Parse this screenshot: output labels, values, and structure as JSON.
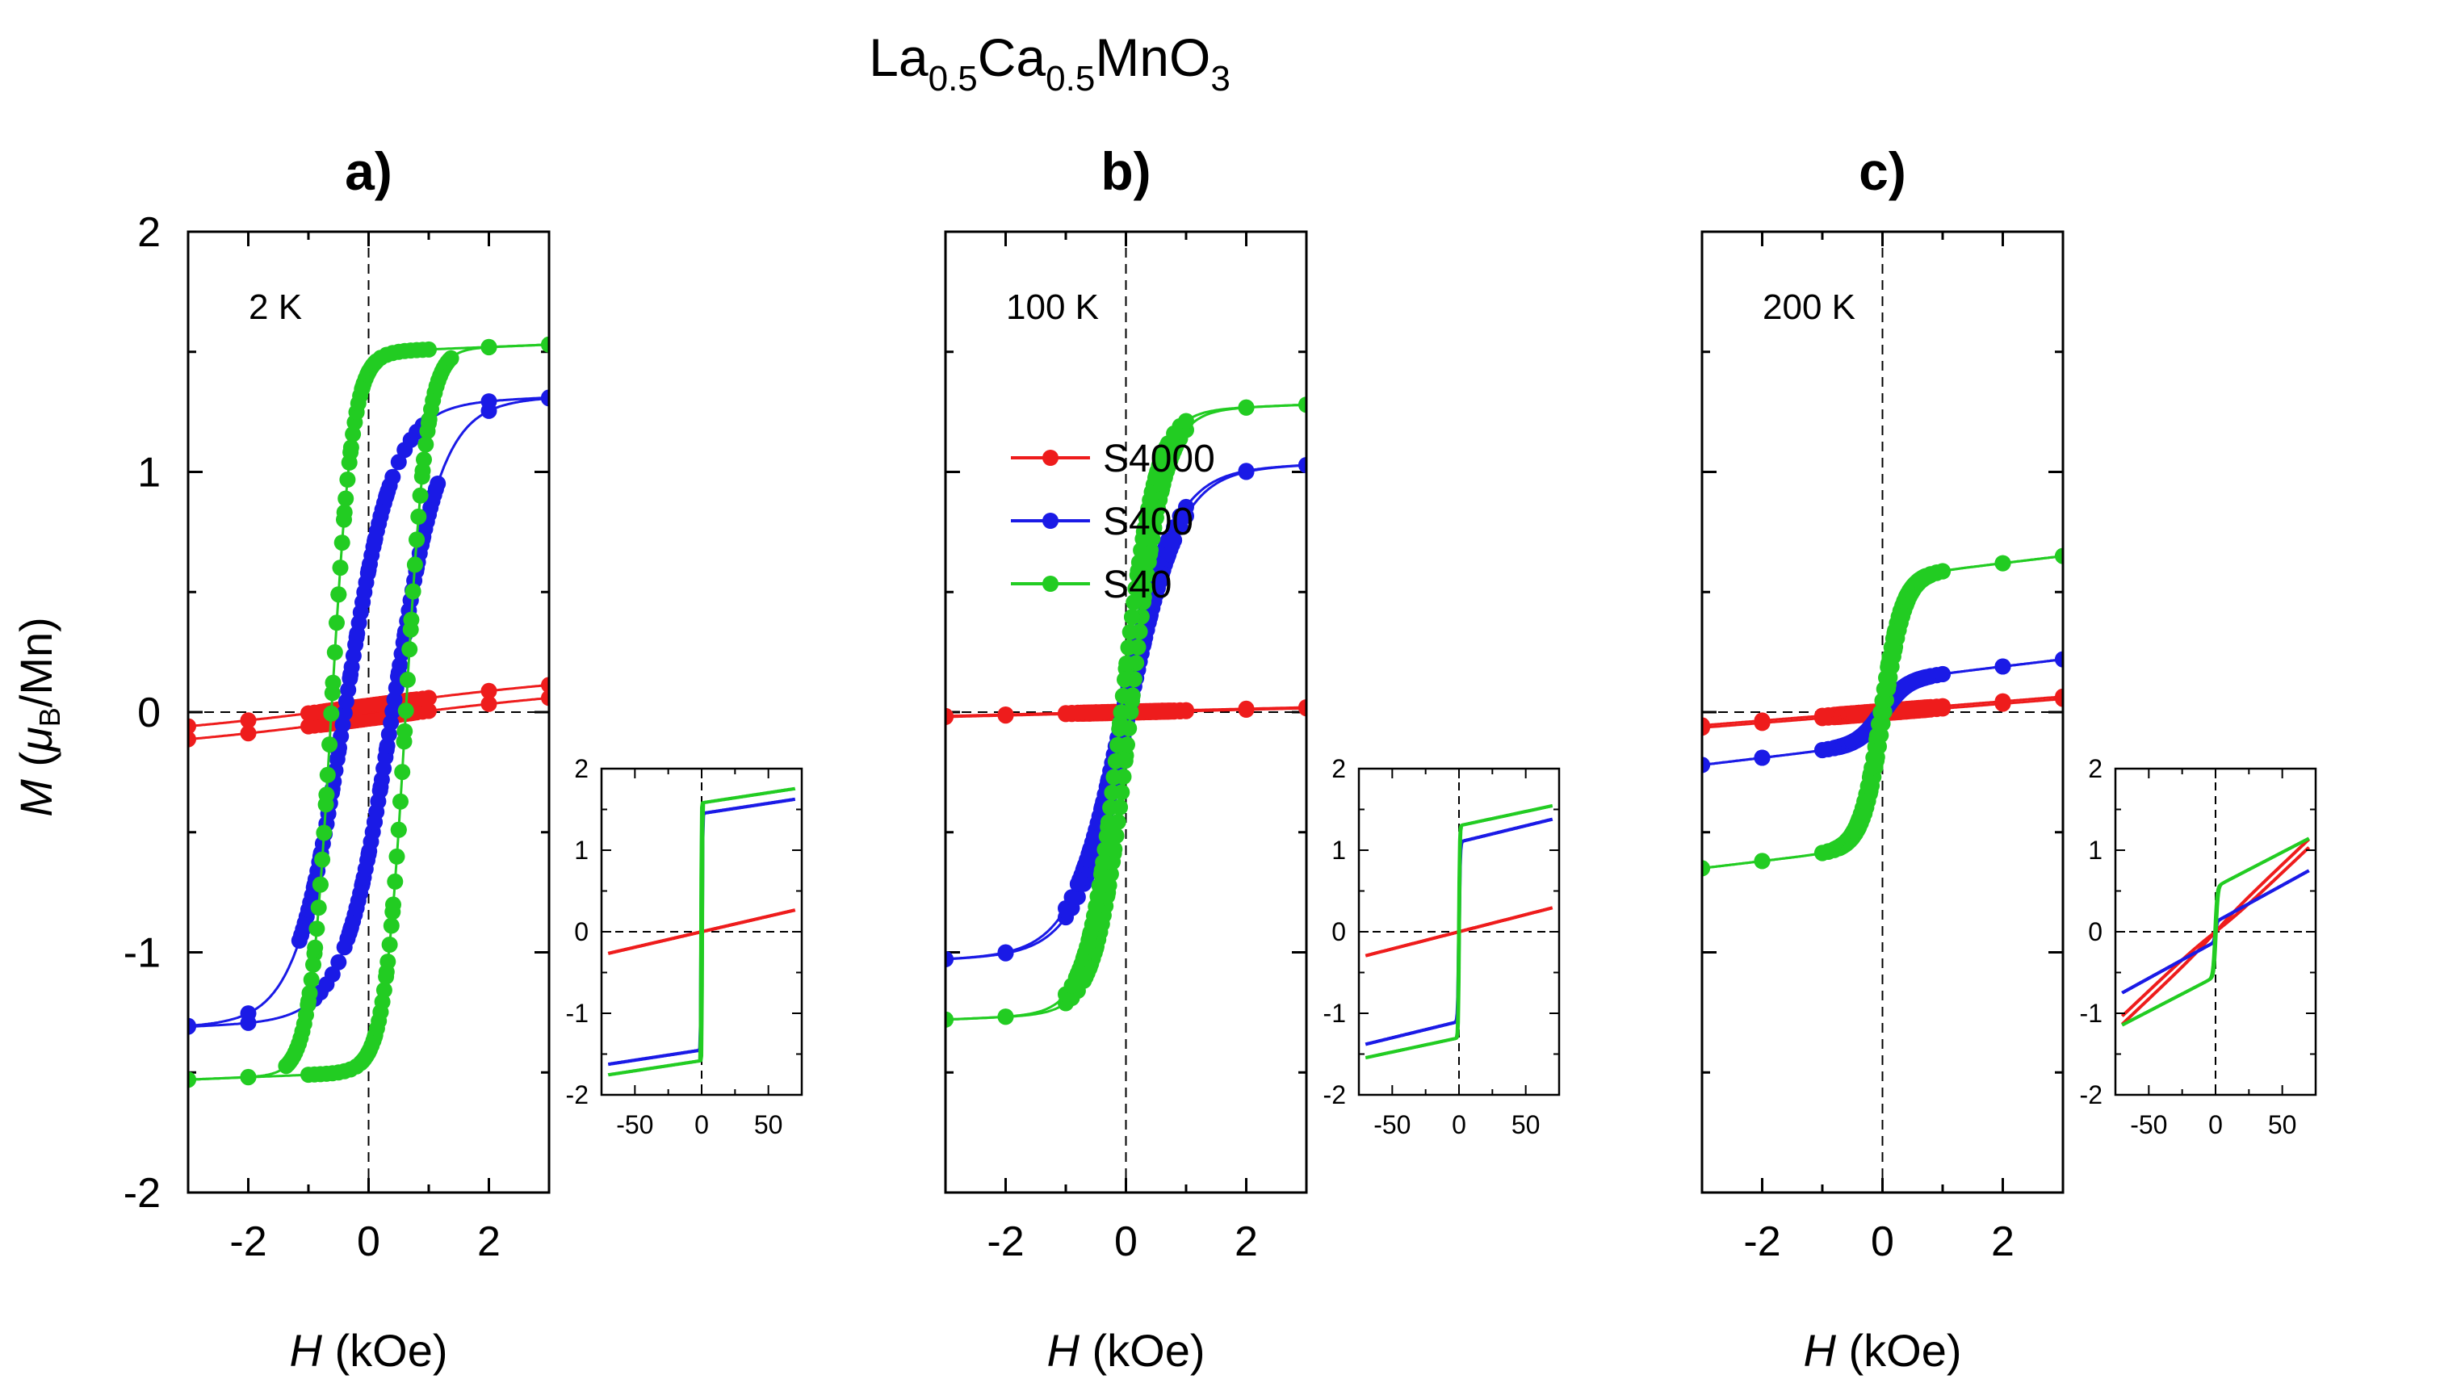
{
  "figure": {
    "title_main_1": "La",
    "title_sub_1": "0.5",
    "title_main_2": "Ca",
    "title_sub_2": "0.5",
    "title_main_3": "MnO",
    "title_sub_3": "3"
  },
  "axes_text": {
    "ylabel_M": "M",
    "ylabel_open": " (",
    "ylabel_mu": "μ",
    "ylabel_B": "B",
    "ylabel_unit": "/Mn)",
    "xlabel_H": "H",
    "xlabel_unit": " (kOe)"
  },
  "colors": {
    "S4000": "#ee1c1c",
    "S400": "#1a1ae6",
    "S40": "#22cc22"
  },
  "chart_data": [
    {
      "type": "line",
      "panel_label": "a)",
      "temperature": "2 K",
      "xlabel": "H (kOe)",
      "ylabel": "M (μB/Mn)",
      "xlim": [
        -3,
        3
      ],
      "ylim": [
        -2,
        2
      ],
      "xticks": [
        -2,
        0,
        2
      ],
      "yticks": [
        -2,
        -1,
        0,
        1,
        2
      ],
      "xtick_labels": [
        "-2",
        "0",
        "2"
      ],
      "ytick_labels": [
        "-2",
        "-1",
        "0",
        "1",
        "2"
      ],
      "series": [
        {
          "name": "S4000",
          "Ms": 0.05,
          "Hc": 0.0,
          "H0": 3.0,
          "chi": 0.016,
          "off": 0.027,
          "label_offset": 0.01
        },
        {
          "name": "S400",
          "Ms": 1.28,
          "Hc": 0.4,
          "H0": 0.8,
          "chi": 0.01,
          "off": 0,
          "label_offset": 0
        },
        {
          "name": "S40",
          "Ms": 1.5,
          "Hc": 0.62,
          "H0": 0.35,
          "chi": 0.01,
          "off": 0,
          "label_offset": 0
        }
      ],
      "inset": {
        "xlim": [
          -75,
          75
        ],
        "ylim": [
          -2,
          2
        ],
        "xticks": [
          -50,
          0,
          50
        ],
        "yticks": [
          -2,
          -1,
          0,
          1,
          2
        ],
        "xtick_labels": [
          "-50",
          "0",
          "50"
        ],
        "ytick_labels": [
          "-2",
          "-1",
          "0",
          "1",
          "2"
        ],
        "series": [
          {
            "name": "S4000",
            "Ms": 0.0,
            "Hc": 0,
            "H0": 1,
            "chi": 0.0038
          },
          {
            "name": "S400",
            "Ms": 1.45,
            "Hc": 0.5,
            "H0": 0.4,
            "chi": 0.0025
          },
          {
            "name": "S40",
            "Ms": 1.58,
            "Hc": 0.6,
            "H0": 0.3,
            "chi": 0.0025
          }
        ]
      }
    },
    {
      "type": "line",
      "panel_label": "b)",
      "temperature": "100 K",
      "xlabel": "H (kOe)",
      "ylabel": "M (μB/Mn)",
      "xlim": [
        -3,
        3
      ],
      "ylim": [
        -2,
        2
      ],
      "xticks": [
        -2,
        0,
        2
      ],
      "yticks": [
        -2,
        -1,
        0,
        1,
        2
      ],
      "xtick_labels": [
        "-2",
        "0",
        "2"
      ],
      "ytick_labels": [
        "-2",
        "-1",
        "0",
        "1",
        "2"
      ],
      "legend": {
        "position": "upper-left",
        "entries": [
          "S4000",
          "S400",
          "S40"
        ]
      },
      "series": [
        {
          "name": "S4000",
          "Ms": 0.0,
          "Hc": 0.0,
          "H0": 1.0,
          "chi": 0.006,
          "off": 0.002,
          "label_offset": 0.005
        },
        {
          "name": "S400",
          "Ms": 1.0,
          "Hc": 0.05,
          "H0": 0.85,
          "chi": 0.01,
          "off": 0,
          "label_offset": 0
        },
        {
          "name": "S40",
          "Ms": 1.25,
          "Hc": 0.08,
          "H0": 0.55,
          "chi": 0.01,
          "off": 0,
          "label_offset": 0
        }
      ],
      "inset": {
        "xlim": [
          -75,
          75
        ],
        "ylim": [
          -2,
          2
        ],
        "xticks": [
          -50,
          0,
          50
        ],
        "yticks": [
          -2,
          -1,
          0,
          1,
          2
        ],
        "xtick_labels": [
          "-50",
          "0",
          "50"
        ],
        "ytick_labels": [
          "-2",
          "-1",
          "0",
          "1",
          "2"
        ],
        "series": [
          {
            "name": "S4000",
            "Ms": 0.0,
            "Hc": 0,
            "H0": 1,
            "chi": 0.0042
          },
          {
            "name": "S400",
            "Ms": 1.1,
            "Hc": 0.2,
            "H0": 0.8,
            "chi": 0.004
          },
          {
            "name": "S40",
            "Ms": 1.3,
            "Hc": 0.3,
            "H0": 0.6,
            "chi": 0.0035
          }
        ]
      }
    },
    {
      "type": "line",
      "panel_label": "c)",
      "temperature": "200 K",
      "xlabel": "H (kOe)",
      "ylabel": "M (μB/Mn)",
      "xlim": [
        -3,
        3
      ],
      "ylim": [
        -2,
        2
      ],
      "xticks": [
        -2,
        0,
        2
      ],
      "yticks": [
        -2,
        -1,
        0,
        1,
        2
      ],
      "xtick_labels": [
        "-2",
        "0",
        "2"
      ],
      "ytick_labels": [
        "-2",
        "-1",
        "0",
        "1",
        "2"
      ],
      "series": [
        {
          "name": "S4000",
          "Ms": 0.0,
          "Hc": 0.0,
          "H0": 1.0,
          "chi": 0.02,
          "off": 0.005,
          "label_offset": 0.005
        },
        {
          "name": "S400",
          "Ms": 0.13,
          "Hc": 0.02,
          "H0": 0.4,
          "chi": 0.03,
          "off": 0,
          "label_offset": 0
        },
        {
          "name": "S40",
          "Ms": 0.56,
          "Hc": 0.03,
          "H0": 0.35,
          "chi": 0.03,
          "off": 0,
          "label_offset": 0
        }
      ],
      "inset": {
        "xlim": [
          -75,
          75
        ],
        "ylim": [
          -2,
          2
        ],
        "xticks": [
          -50,
          0,
          50
        ],
        "yticks": [
          -2,
          -1,
          0,
          1,
          2
        ],
        "xtick_labels": [
          "-50",
          "0",
          "50"
        ],
        "ytick_labels": [
          "-2",
          "-1",
          "0",
          "1",
          "2"
        ],
        "series": [
          {
            "name": "S4000",
            "Ms": 0.0,
            "Hc": 0,
            "H0": 1,
            "chi": 0.0155,
            "sat": 1.0
          },
          {
            "name": "S400",
            "Ms": 0.12,
            "Hc": 0.3,
            "H0": 1,
            "chi": 0.009
          },
          {
            "name": "S40",
            "Ms": 0.55,
            "Hc": 0.5,
            "H0": 1.5,
            "chi": 0.0085
          }
        ]
      }
    }
  ]
}
